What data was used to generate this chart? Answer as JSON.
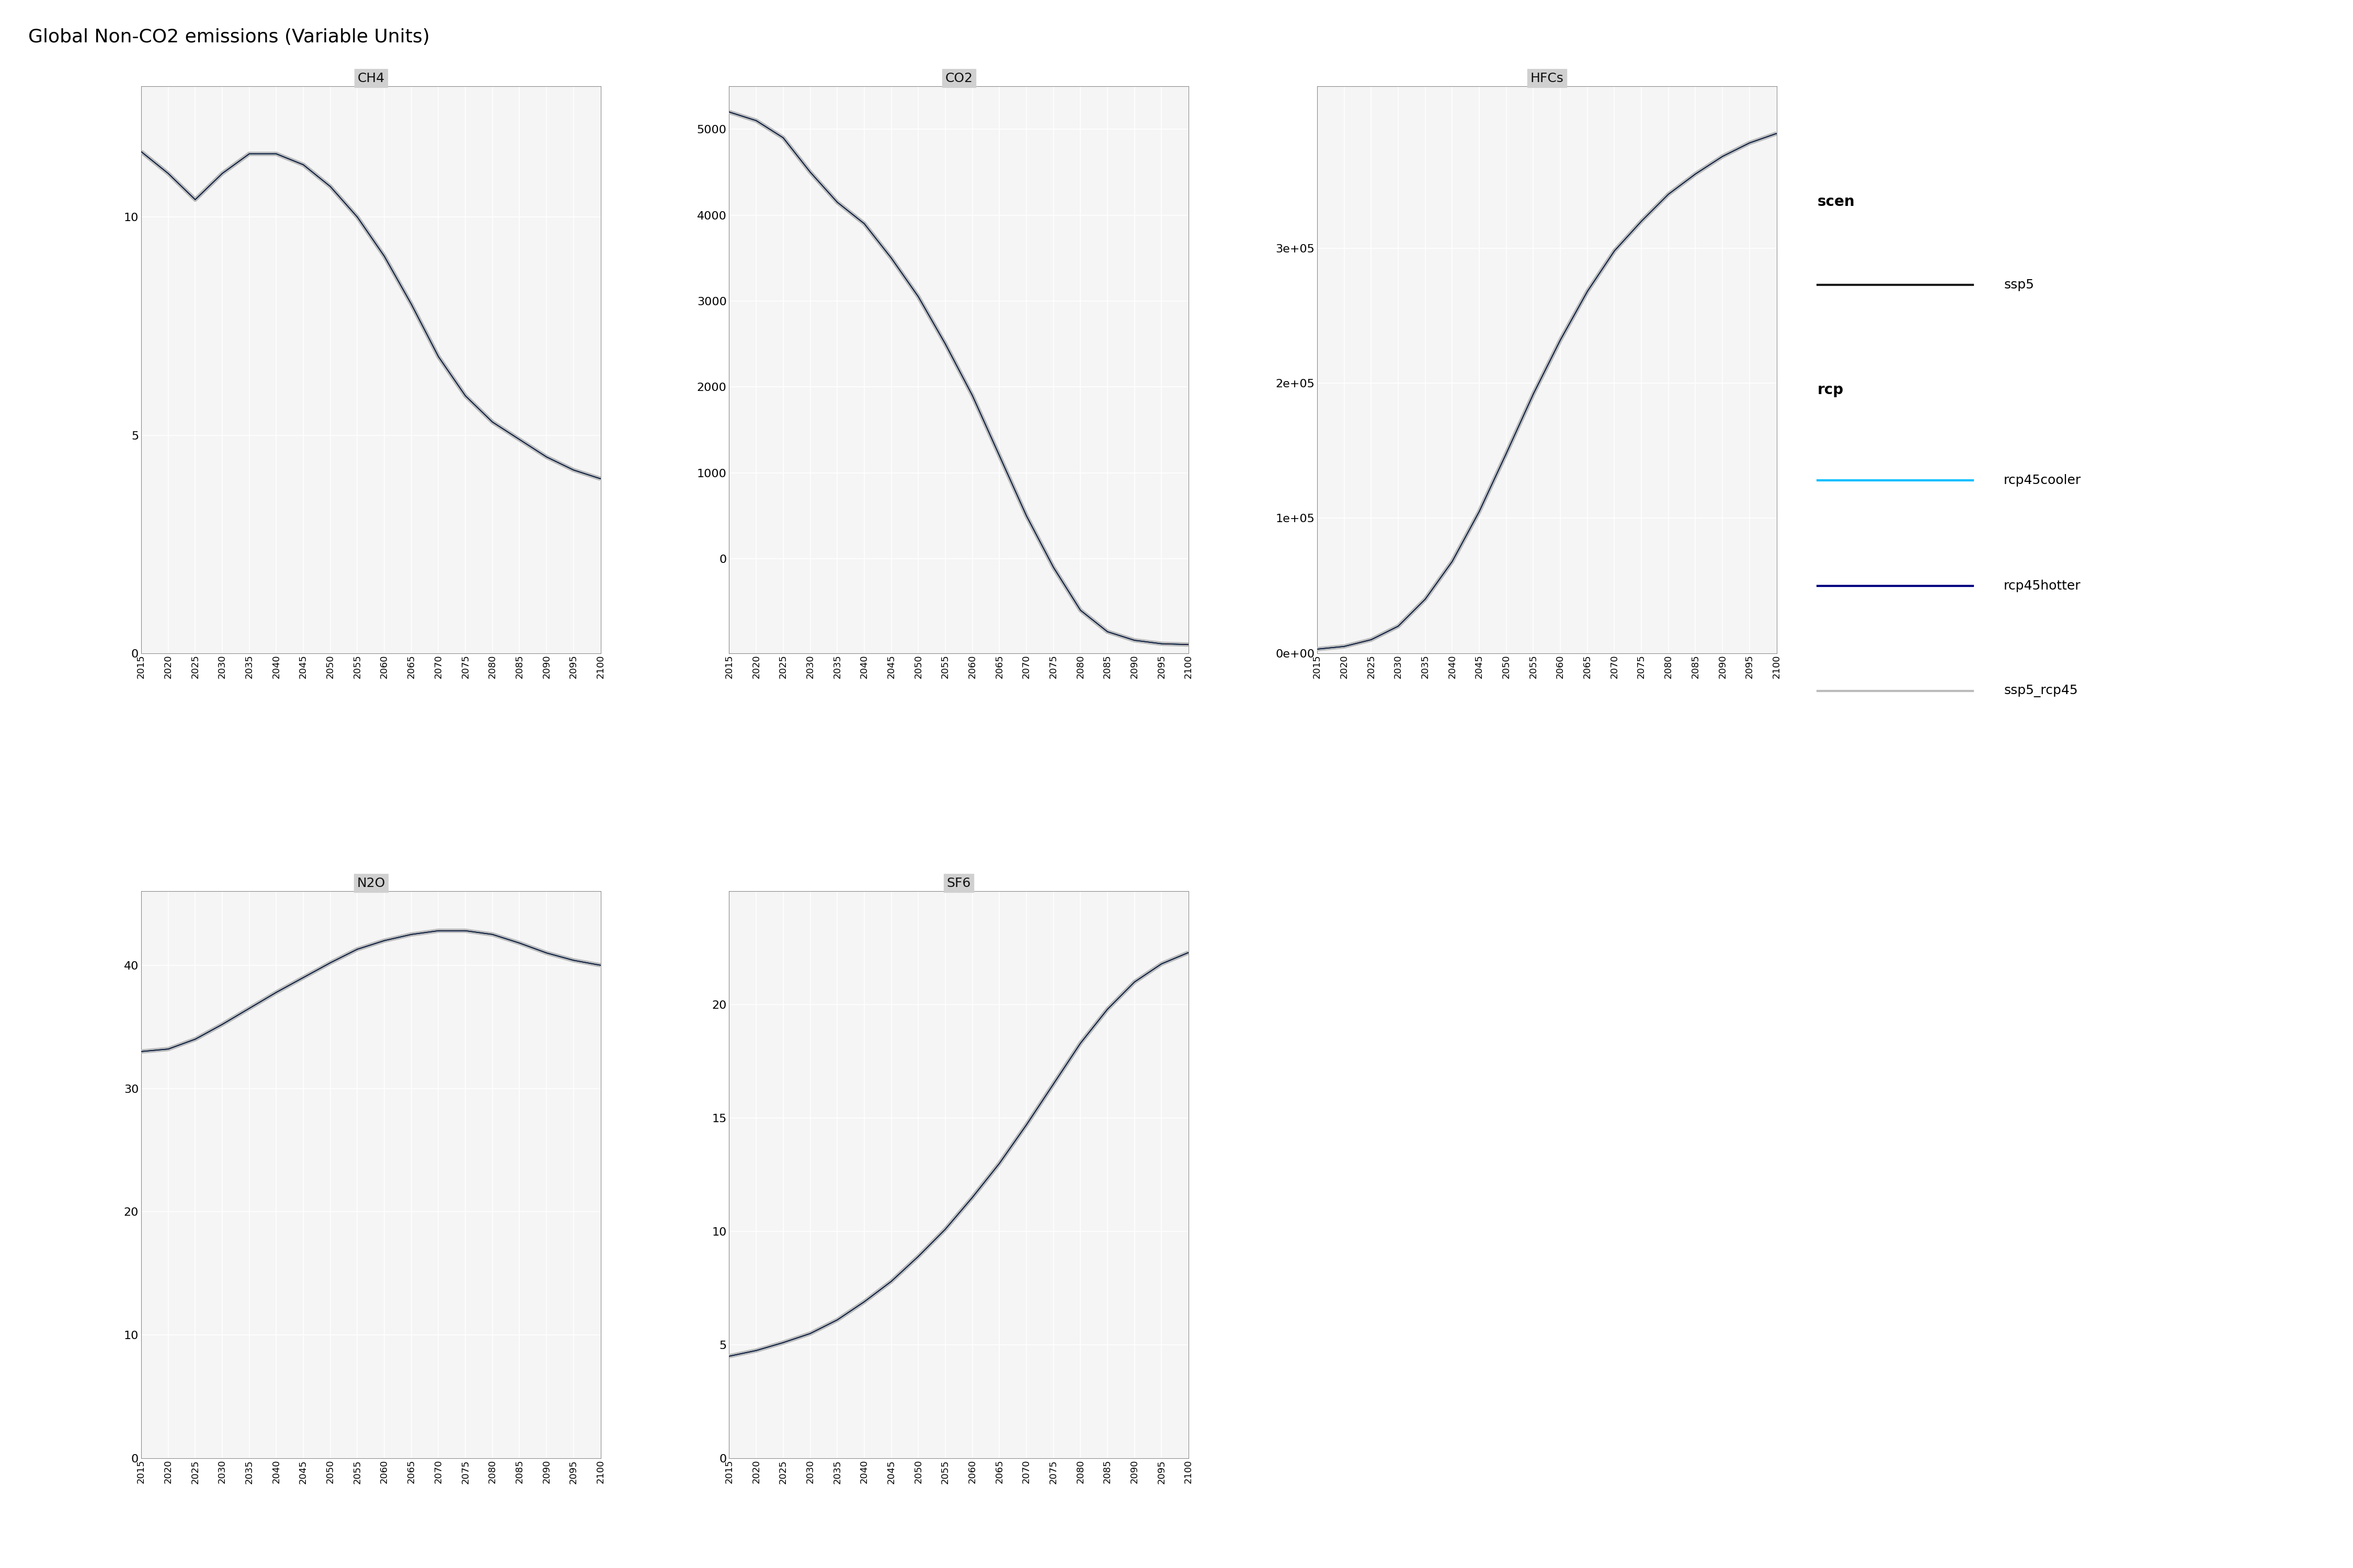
{
  "title": "Global Non-CO2 emissions (Variable Units)",
  "years": [
    2015,
    2020,
    2025,
    2030,
    2035,
    2040,
    2045,
    2050,
    2055,
    2060,
    2065,
    2070,
    2075,
    2080,
    2085,
    2090,
    2095,
    2100
  ],
  "subplots": {
    "CH4": {
      "ssp5_rcp45": [
        11.5,
        11.0,
        10.4,
        11.0,
        11.45,
        11.45,
        11.2,
        10.7,
        10.0,
        9.1,
        8.0,
        6.8,
        5.9,
        5.3,
        4.9,
        4.5,
        4.2,
        4.0
      ],
      "rcp45cooler": [
        11.5,
        11.0,
        10.4,
        11.0,
        11.45,
        11.45,
        11.2,
        10.7,
        10.0,
        9.1,
        8.0,
        6.8,
        5.9,
        5.3,
        4.9,
        4.5,
        4.2,
        4.0
      ],
      "rcp45hotter": [
        11.5,
        11.0,
        10.4,
        11.0,
        11.45,
        11.45,
        11.2,
        10.7,
        10.0,
        9.1,
        8.0,
        6.8,
        5.9,
        5.3,
        4.9,
        4.5,
        4.2,
        4.0
      ],
      "ssp5": [
        11.5,
        11.0,
        10.4,
        11.0,
        11.45,
        11.45,
        11.2,
        10.7,
        10.0,
        9.1,
        8.0,
        6.8,
        5.9,
        5.3,
        4.9,
        4.5,
        4.2,
        4.0
      ],
      "ylim_lo": 0,
      "ylim_hi": 13,
      "yticks": [
        0,
        5,
        10
      ]
    },
    "CO2": {
      "ssp5_rcp45": [
        5200,
        5100,
        4900,
        4500,
        4150,
        3900,
        3500,
        3050,
        2500,
        1900,
        1200,
        500,
        -100,
        -600,
        -850,
        -950,
        -990,
        -1000
      ],
      "rcp45cooler": [
        5200,
        5100,
        4900,
        4500,
        4150,
        3900,
        3500,
        3050,
        2500,
        1900,
        1200,
        500,
        -100,
        -600,
        -850,
        -950,
        -990,
        -1000
      ],
      "rcp45hotter": [
        5200,
        5100,
        4900,
        4500,
        4150,
        3900,
        3500,
        3050,
        2500,
        1900,
        1200,
        500,
        -100,
        -600,
        -850,
        -950,
        -990,
        -1000
      ],
      "ssp5": [
        5200,
        5100,
        4900,
        4500,
        4150,
        3900,
        3500,
        3050,
        2500,
        1900,
        1200,
        500,
        -100,
        -600,
        -850,
        -950,
        -990,
        -1000
      ],
      "ylim_lo": -1100,
      "ylim_hi": 5500,
      "yticks": [
        0,
        1000,
        2000,
        3000,
        4000,
        5000
      ]
    },
    "HFCs": {
      "ssp5_rcp45": [
        3000,
        5000,
        10000,
        20000,
        40000,
        68000,
        105000,
        148000,
        192000,
        232000,
        268000,
        298000,
        320000,
        340000,
        355000,
        368000,
        378000,
        385000
      ],
      "rcp45cooler": [
        3000,
        5000,
        10000,
        20000,
        40000,
        68000,
        105000,
        148000,
        192000,
        232000,
        268000,
        298000,
        320000,
        340000,
        355000,
        368000,
        378000,
        385000
      ],
      "rcp45hotter": [
        3000,
        5000,
        10000,
        20000,
        40000,
        68000,
        105000,
        148000,
        192000,
        232000,
        268000,
        298000,
        320000,
        340000,
        355000,
        368000,
        378000,
        385000
      ],
      "ssp5": [
        3000,
        5000,
        10000,
        20000,
        40000,
        68000,
        105000,
        148000,
        192000,
        232000,
        268000,
        298000,
        320000,
        340000,
        355000,
        368000,
        378000,
        385000
      ],
      "ylim_lo": 0,
      "ylim_hi": 420000,
      "yticks": [
        0,
        100000,
        200000,
        300000
      ]
    },
    "N2O": {
      "ssp5_rcp45": [
        33.0,
        33.2,
        34.0,
        35.2,
        36.5,
        37.8,
        39.0,
        40.2,
        41.3,
        42.0,
        42.5,
        42.8,
        42.8,
        42.5,
        41.8,
        41.0,
        40.4,
        40.0
      ],
      "rcp45cooler": [
        33.0,
        33.2,
        34.0,
        35.2,
        36.5,
        37.8,
        39.0,
        40.2,
        41.3,
        42.0,
        42.5,
        42.8,
        42.8,
        42.5,
        41.8,
        41.0,
        40.4,
        40.0
      ],
      "rcp45hotter": [
        33.0,
        33.2,
        34.0,
        35.2,
        36.5,
        37.8,
        39.0,
        40.2,
        41.3,
        42.0,
        42.5,
        42.8,
        42.8,
        42.5,
        41.8,
        41.0,
        40.4,
        40.0
      ],
      "ssp5": [
        33.0,
        33.2,
        34.0,
        35.2,
        36.5,
        37.8,
        39.0,
        40.2,
        41.3,
        42.0,
        42.5,
        42.8,
        42.8,
        42.5,
        41.8,
        41.0,
        40.4,
        40.0
      ],
      "ylim_lo": 0,
      "ylim_hi": 46,
      "yticks": [
        0,
        10,
        20,
        30,
        40
      ]
    },
    "SF6": {
      "ssp5_rcp45": [
        4.5,
        4.75,
        5.1,
        5.5,
        6.1,
        6.9,
        7.8,
        8.9,
        10.1,
        11.5,
        13.0,
        14.7,
        16.5,
        18.3,
        19.8,
        21.0,
        21.8,
        22.3
      ],
      "rcp45cooler": [
        4.5,
        4.75,
        5.1,
        5.5,
        6.1,
        6.9,
        7.8,
        8.9,
        10.1,
        11.5,
        13.0,
        14.7,
        16.5,
        18.3,
        19.8,
        21.0,
        21.8,
        22.3
      ],
      "rcp45hotter": [
        4.5,
        4.75,
        5.1,
        5.5,
        6.1,
        6.9,
        7.8,
        8.9,
        10.1,
        11.5,
        13.0,
        14.7,
        16.5,
        18.3,
        19.8,
        21.0,
        21.8,
        22.3
      ],
      "ssp5": [
        4.5,
        4.75,
        5.1,
        5.5,
        6.1,
        6.9,
        7.8,
        8.9,
        10.1,
        11.5,
        13.0,
        14.7,
        16.5,
        18.3,
        19.8,
        21.0,
        21.8,
        22.3
      ],
      "ylim_lo": 0,
      "ylim_hi": 25,
      "yticks": [
        0,
        5,
        10,
        15,
        20
      ]
    }
  },
  "colors": {
    "ssp5": "#1a1a1a",
    "rcp45cooler": "#00BFFF",
    "rcp45hotter": "#000080",
    "ssp5_rcp45": "#BBBBBB"
  },
  "line_widths": {
    "ssp5": 1.0,
    "rcp45cooler": 1.2,
    "rcp45hotter": 1.2,
    "ssp5_rcp45": 6.0
  },
  "subplot_order": [
    "CH4",
    "CO2",
    "HFCs",
    "N2O",
    "SF6"
  ],
  "background_color": "#FFFFFF",
  "panel_bg": "#F5F5F5",
  "grid_color": "#E8E8E8",
  "header_bg": "#D0D0D0",
  "header_text": "#111111"
}
